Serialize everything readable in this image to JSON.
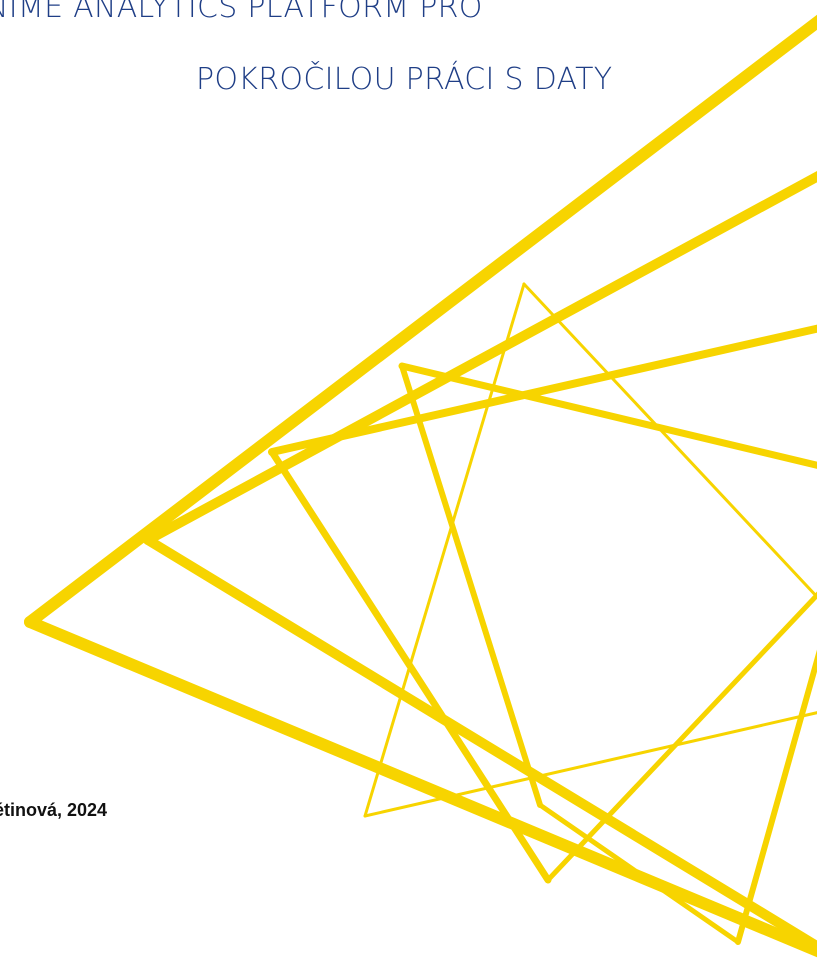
{
  "cover": {
    "title_line1": "NIME ANALYTICS PLATFORM PRO",
    "title_line2": "POKROČILOU PRÁCI S DATY",
    "author_year": "étinová, 2024"
  },
  "colors": {
    "title": "#1f3e86",
    "accent_yellow": "#f7d400",
    "text": "#111111"
  }
}
